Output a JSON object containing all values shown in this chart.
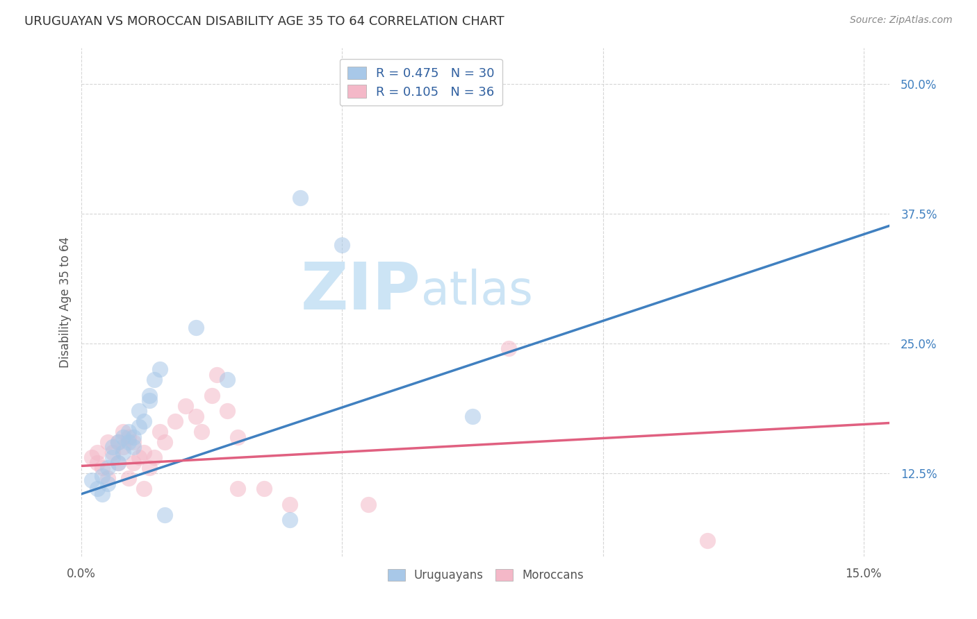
{
  "title": "URUGUAYAN VS MOROCCAN DISABILITY AGE 35 TO 64 CORRELATION CHART",
  "source": "Source: ZipAtlas.com",
  "ylabel": "Disability Age 35 to 64",
  "ytick_labels": [
    "12.5%",
    "25.0%",
    "37.5%",
    "50.0%"
  ],
  "ytick_values": [
    0.125,
    0.25,
    0.375,
    0.5
  ],
  "xtick_labels": [
    "0.0%",
    "15.0%"
  ],
  "xtick_positions": [
    0.0,
    0.15
  ],
  "xlim": [
    0.0,
    0.155
  ],
  "ylim": [
    0.045,
    0.535
  ],
  "blue_color": "#a8c8e8",
  "pink_color": "#f4b8c8",
  "blue_line_color": "#4080c0",
  "pink_line_color": "#e06080",
  "background_color": "#ffffff",
  "grid_color": "#cccccc",
  "title_color": "#333333",
  "source_color": "#888888",
  "watermark_color": "#cce4f5",
  "legend_label_color": "#3060a0",
  "uruguayan_x": [
    0.002,
    0.003,
    0.004,
    0.004,
    0.005,
    0.005,
    0.006,
    0.006,
    0.007,
    0.007,
    0.008,
    0.008,
    0.009,
    0.009,
    0.01,
    0.01,
    0.011,
    0.011,
    0.012,
    0.013,
    0.013,
    0.014,
    0.015,
    0.016,
    0.022,
    0.028,
    0.04,
    0.042,
    0.05,
    0.075
  ],
  "uruguayan_y": [
    0.118,
    0.11,
    0.105,
    0.122,
    0.13,
    0.115,
    0.14,
    0.15,
    0.135,
    0.155,
    0.16,
    0.145,
    0.165,
    0.155,
    0.16,
    0.15,
    0.17,
    0.185,
    0.175,
    0.195,
    0.2,
    0.215,
    0.225,
    0.085,
    0.265,
    0.215,
    0.08,
    0.39,
    0.345,
    0.18
  ],
  "moroccan_x": [
    0.002,
    0.003,
    0.003,
    0.004,
    0.005,
    0.005,
    0.006,
    0.007,
    0.007,
    0.008,
    0.008,
    0.009,
    0.009,
    0.01,
    0.01,
    0.011,
    0.012,
    0.012,
    0.013,
    0.014,
    0.015,
    0.016,
    0.018,
    0.02,
    0.022,
    0.023,
    0.025,
    0.026,
    0.028,
    0.03,
    0.03,
    0.035,
    0.04,
    0.055,
    0.082,
    0.12
  ],
  "moroccan_y": [
    0.14,
    0.145,
    0.135,
    0.13,
    0.155,
    0.12,
    0.145,
    0.155,
    0.135,
    0.165,
    0.15,
    0.12,
    0.16,
    0.155,
    0.135,
    0.14,
    0.11,
    0.145,
    0.13,
    0.14,
    0.165,
    0.155,
    0.175,
    0.19,
    0.18,
    0.165,
    0.2,
    0.22,
    0.185,
    0.11,
    0.16,
    0.11,
    0.095,
    0.095,
    0.245,
    0.06
  ],
  "blue_intercept": 0.105,
  "blue_slope": 1.667,
  "pink_intercept": 0.132,
  "pink_slope": 0.267,
  "R_uruguayan": 0.475,
  "N_uruguayan": 30,
  "R_moroccan": 0.105,
  "N_moroccan": 36
}
